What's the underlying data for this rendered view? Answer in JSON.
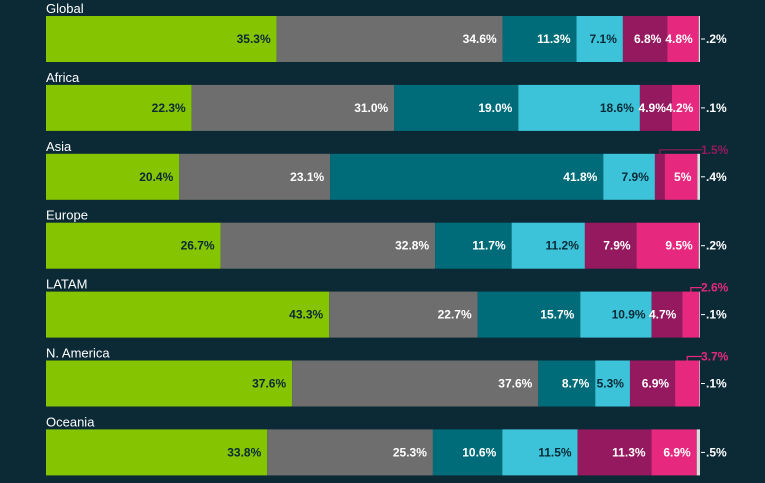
{
  "chart_data": {
    "type": "bar",
    "orientation": "horizontal-stacked-100",
    "categories": [
      "Global",
      "Africa",
      "Asia",
      "Europe",
      "LATAM",
      "N. America",
      "Oceania"
    ],
    "series": [
      {
        "color": "#84c400",
        "values": [
          35.3,
          22.3,
          20.4,
          26.7,
          43.3,
          37.6,
          33.8
        ],
        "labels": [
          "35.3%",
          "22.3%",
          "20.4%",
          "26.7%",
          "43.3%",
          "37.6%",
          "33.8%"
        ]
      },
      {
        "color": "#6e6e6e",
        "values": [
          34.6,
          31.0,
          23.1,
          32.8,
          22.7,
          37.6,
          25.3
        ],
        "labels": [
          "34.6%",
          "31.0%",
          "23.1%",
          "32.8%",
          "22.7%",
          "37.6%",
          "25.3%"
        ]
      },
      {
        "color": "#006c7a",
        "values": [
          11.3,
          19.0,
          41.8,
          11.7,
          15.7,
          8.7,
          10.6
        ],
        "labels": [
          "11.3%",
          "19.0%",
          "41.8%",
          "11.7%",
          "15.7%",
          "8.7%",
          "10.6%"
        ]
      },
      {
        "color": "#3cc3d9",
        "values": [
          7.1,
          18.6,
          7.9,
          11.2,
          10.9,
          5.3,
          11.5
        ],
        "labels": [
          "7.1%",
          "18.6%",
          "7.9%",
          "11.2%",
          "10.9%",
          "5.3%",
          "11.5%"
        ]
      },
      {
        "color": "#94195f",
        "values": [
          6.8,
          4.9,
          1.5,
          7.9,
          4.7,
          6.9,
          11.3
        ],
        "labels": [
          "6.8%",
          "4.9%",
          "1.5%",
          "7.9%",
          "4.7%",
          "6.9%",
          "11.3%"
        ]
      },
      {
        "color": "#e6287e",
        "values": [
          4.8,
          4.2,
          5.0,
          9.5,
          2.6,
          3.7,
          6.9
        ],
        "labels": [
          "4.8%",
          "4.2%",
          "5%",
          "9.5%",
          "2.6%",
          "3.7%",
          "6.9%"
        ]
      },
      {
        "color": "#dcdcdc",
        "values": [
          0.2,
          0.1,
          0.4,
          0.2,
          0.1,
          0.1,
          0.5
        ],
        "labels": [
          ".2%",
          ".1%",
          ".4%",
          ".2%",
          ".1%",
          ".1%",
          ".5%"
        ]
      }
    ],
    "xlim": [
      0,
      100
    ],
    "legend": "none",
    "grid": false
  }
}
